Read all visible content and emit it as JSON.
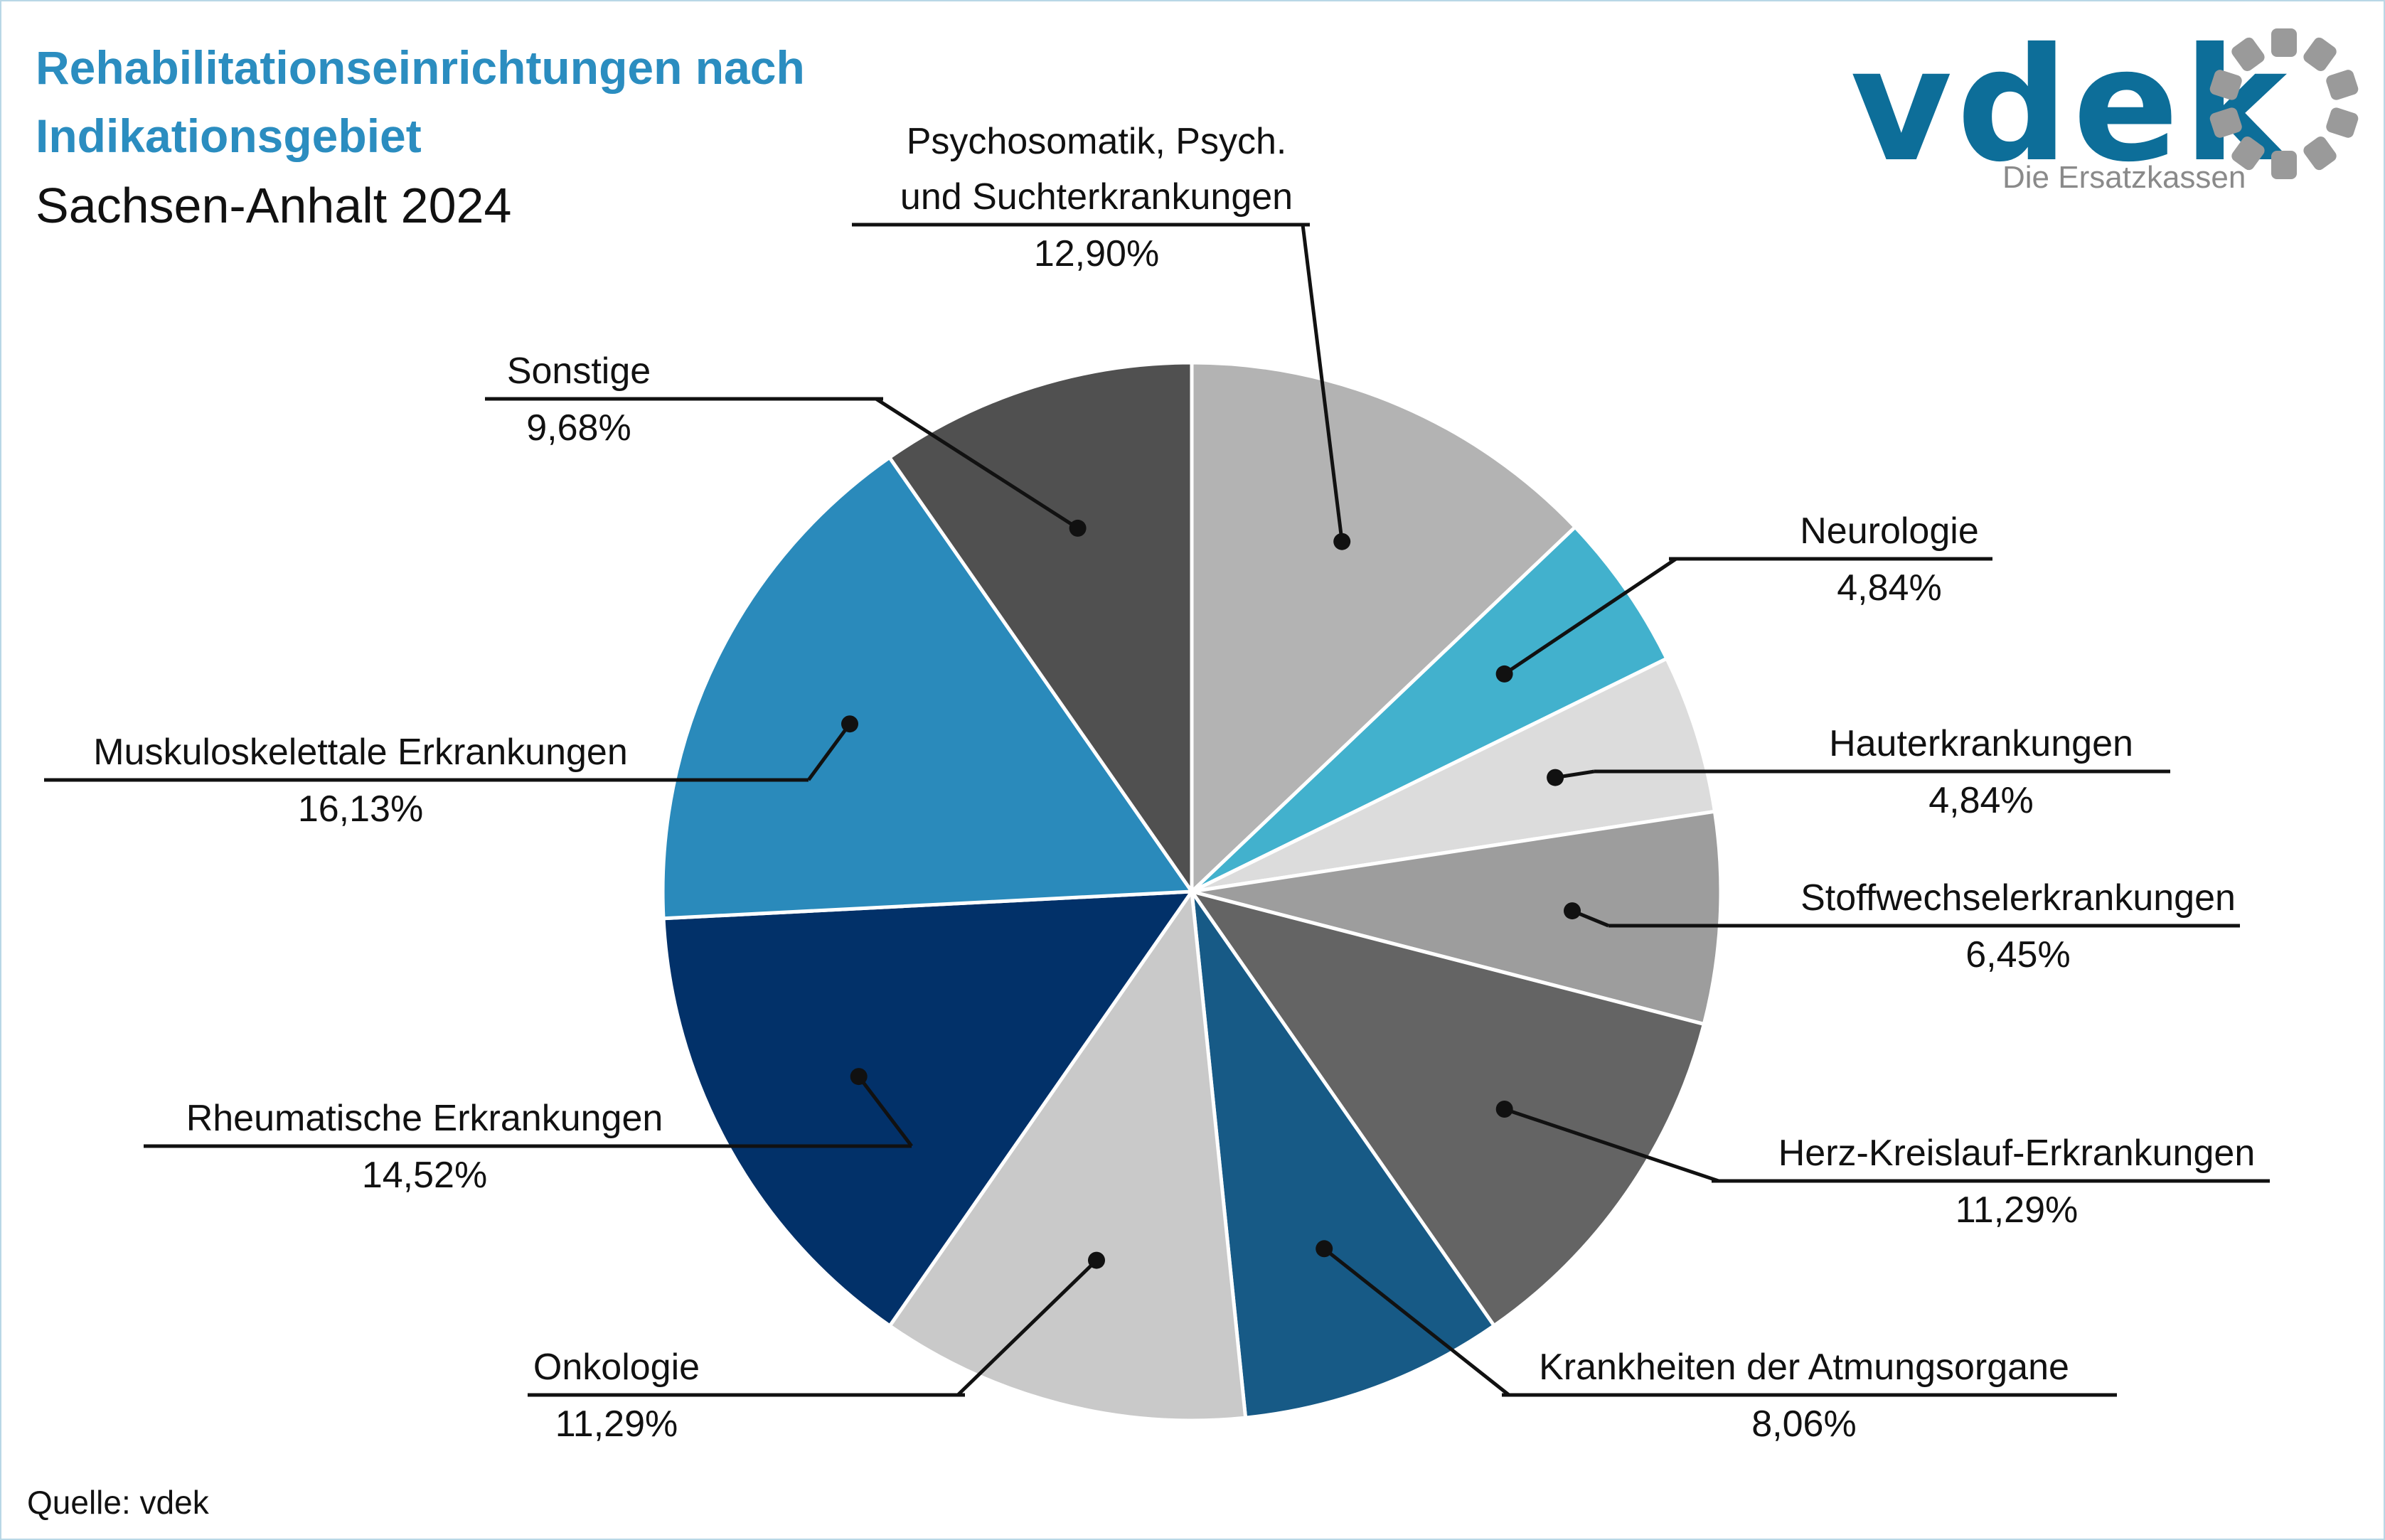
{
  "header": {
    "title_line1": "Rehabilitationseinrichtungen nach",
    "title_line2": "Indikationsgebiet",
    "subtitle": "Sachsen-Anhalt 2024"
  },
  "logo": {
    "word": "vdek",
    "tagline": "Die Ersatzkassen",
    "word_color": "#0d6e99",
    "mark_color": "#9a9a9a"
  },
  "source": "Quelle: vdek",
  "chart_data": {
    "type": "pie",
    "title": "Rehabilitationseinrichtungen nach Indikationsgebiet",
    "subtitle": "Sachsen-Anhalt 2024",
    "unit": "%",
    "start": "top, clockwise",
    "slices": [
      {
        "label": [
          "Psychosomatik, Psych.",
          "und Suchterkrankungen"
        ],
        "value": 12.9,
        "value_text": "12,90%",
        "color": "#b3b3b3"
      },
      {
        "label": [
          "Neurologie"
        ],
        "value": 4.84,
        "value_text": "4,84%",
        "color": "#42b1cd"
      },
      {
        "label": [
          "Hauterkrankungen"
        ],
        "value": 4.84,
        "value_text": "4,84%",
        "color": "#dcdcdc"
      },
      {
        "label": [
          "Stoffwechselerkrankungen"
        ],
        "value": 6.45,
        "value_text": "6,45%",
        "color": "#9d9d9d"
      },
      {
        "label": [
          "Herz-Kreislauf-Erkrankungen"
        ],
        "value": 11.29,
        "value_text": "11,29%",
        "color": "#646464"
      },
      {
        "label": [
          "Krankheiten der Atmungsorgane"
        ],
        "value": 8.06,
        "value_text": "8,06%",
        "color": "#175a86"
      },
      {
        "label": [
          "Onkologie"
        ],
        "value": 11.29,
        "value_text": "11,29%",
        "color": "#c9c9c9"
      },
      {
        "label": [
          "Rheumatische Erkrankungen"
        ],
        "value": 14.52,
        "value_text": "14,52%",
        "color": "#023169"
      },
      {
        "label": [
          "Muskuloskelettale Erkrankungen"
        ],
        "value": 16.13,
        "value_text": "16,13%",
        "color": "#2a8abb"
      },
      {
        "label": [
          "Sonstige"
        ],
        "value": 9.68,
        "value_text": "9,68%",
        "color": "#505050"
      }
    ]
  }
}
